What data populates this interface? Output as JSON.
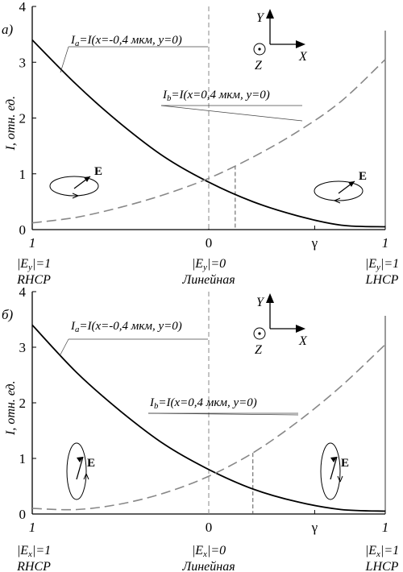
{
  "chart_data": [
    {
      "type": "line",
      "panel_label": "а)",
      "ylabel": "I, отн. ед.",
      "ylim": [
        0,
        4
      ],
      "yticks": [
        "0",
        "1",
        "2",
        "3",
        "4"
      ],
      "xlim": [
        -1,
        1
      ],
      "xticks": [
        {
          "x": -1,
          "label": "1"
        },
        {
          "x": 0,
          "label": "0"
        },
        {
          "x": 0.6,
          "label": "γ"
        },
        {
          "x": 1,
          "label": "1"
        }
      ],
      "bottom_labels": {
        "left": [
          "|Eу|=1",
          "RHCP"
        ],
        "center": [
          "|Eу|=0",
          "Линейная"
        ],
        "right": [
          "|Eу|=1",
          "LHCP"
        ]
      },
      "axes_icon": {
        "y": "Y",
        "x": "X",
        "z": "Z"
      },
      "ellipse_symbol": "E",
      "ellipse_orientation": "horizontal",
      "guides": {
        "zero_x": 0,
        "marker_x": 0.15
      },
      "series": [
        {
          "name": "Ia=I(x=-0,4 мкм, y=0)",
          "style": "solid",
          "color": "#000000",
          "x": [
            -1,
            -0.75,
            -0.5,
            -0.25,
            0,
            0.25,
            0.5,
            0.75,
            1
          ],
          "y": [
            3.4,
            2.6,
            1.9,
            1.3,
            0.85,
            0.5,
            0.25,
            0.08,
            0.05
          ]
        },
        {
          "name": "Ib=I(x=0,4 мкм, y=0)",
          "style": "dashed",
          "color": "#888888",
          "x": [
            -1,
            -0.75,
            -0.5,
            -0.25,
            0,
            0.25,
            0.5,
            0.75,
            1
          ],
          "y": [
            0.12,
            0.22,
            0.4,
            0.63,
            0.92,
            1.3,
            1.75,
            2.3,
            3.05
          ]
        }
      ]
    },
    {
      "type": "line",
      "panel_label": "б)",
      "ylabel": "I, отн. ед.",
      "ylim": [
        0,
        4
      ],
      "yticks": [
        "0",
        "1",
        "2",
        "3",
        "4"
      ],
      "xlim": [
        -1,
        1
      ],
      "xticks": [
        {
          "x": -1,
          "label": "1"
        },
        {
          "x": 0,
          "label": "0"
        },
        {
          "x": 0.6,
          "label": "γ"
        },
        {
          "x": 1,
          "label": "1"
        }
      ],
      "bottom_labels": {
        "left": [
          "|Ex|=1",
          "RHCP"
        ],
        "center": [
          "|Ex|=0",
          "Линейная"
        ],
        "right": [
          "|Ex|=1",
          "LHCP"
        ]
      },
      "axes_icon": {
        "y": "Y",
        "x": "X",
        "z": "Z"
      },
      "ellipse_symbol": "E",
      "ellipse_orientation": "vertical",
      "guides": {
        "zero_x": 0,
        "marker_x": 0.25
      },
      "series": [
        {
          "name": "Ia=I(x=-0,4 мкм, y=0)",
          "style": "solid",
          "color": "#000000",
          "x": [
            -1,
            -0.75,
            -0.5,
            -0.25,
            0,
            0.25,
            0.5,
            0.75,
            1
          ],
          "y": [
            3.4,
            2.55,
            1.85,
            1.25,
            0.8,
            0.45,
            0.22,
            0.08,
            0.05
          ]
        },
        {
          "name": "Ib=I(x=0,4 мкм, y=0)",
          "style": "dashed",
          "color": "#888888",
          "x": [
            -1,
            -0.75,
            -0.5,
            -0.25,
            0,
            0.25,
            0.5,
            0.75,
            1
          ],
          "y": [
            0.1,
            0.08,
            0.18,
            0.38,
            0.68,
            1.1,
            1.65,
            2.3,
            3.05
          ]
        }
      ]
    }
  ]
}
